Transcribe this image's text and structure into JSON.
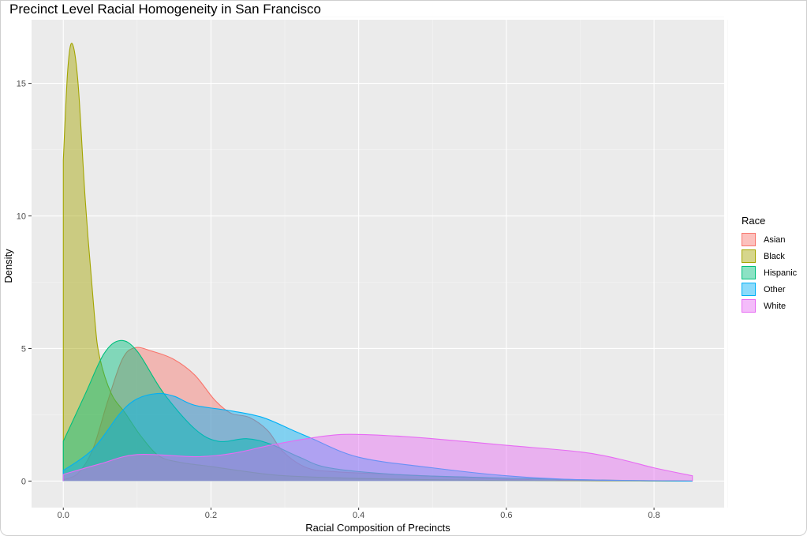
{
  "chart_data": {
    "type": "area",
    "title": "Precinct Level Racial Homogeneity in San Francisco",
    "xlabel": "Racial Composition of Precincts",
    "ylabel": "Density",
    "xlim": [
      -0.043,
      0.895
    ],
    "ylim": [
      -1.0,
      17.4
    ],
    "xticks": [
      0.0,
      0.2,
      0.4,
      0.6,
      0.8
    ],
    "xtick_labels": [
      "0.0",
      "0.2",
      "0.4",
      "0.6",
      "0.8"
    ],
    "yticks": [
      0,
      5,
      10,
      15
    ],
    "ytick_labels": [
      "0",
      "5",
      "10",
      "15"
    ],
    "grid": true,
    "legend": {
      "title": "Race",
      "placement": "right"
    },
    "series": [
      {
        "name": "Asian",
        "color": "#F8766D",
        "x": [
          0,
          0.02,
          0.04,
          0.06,
          0.08,
          0.097,
          0.12,
          0.149,
          0.178,
          0.205,
          0.227,
          0.252,
          0.277,
          0.298,
          0.33,
          0.37,
          0.45,
          0.55,
          0.62,
          0.65,
          0.68,
          0.75,
          0.852
        ],
        "y": [
          0.05,
          0.3,
          1.2,
          3.0,
          4.6,
          5.03,
          4.9,
          4.6,
          4.0,
          3.06,
          2.56,
          2.4,
          1.9,
          1.1,
          0.5,
          0.35,
          0.25,
          0.12,
          0.05,
          0.1,
          0.03,
          0.02,
          0.0
        ]
      },
      {
        "name": "Black",
        "color": "#A3A500",
        "x": [
          0,
          0.006,
          0.012,
          0.02,
          0.03,
          0.042,
          0.049,
          0.065,
          0.084,
          0.105,
          0.13,
          0.16,
          0.2,
          0.25,
          0.3,
          0.4,
          0.5,
          0.6,
          0.7,
          0.852
        ],
        "y": [
          12.1,
          15.5,
          16.5,
          15.0,
          10.5,
          6.3,
          4.7,
          3.3,
          2.56,
          1.7,
          0.94,
          0.7,
          0.55,
          0.35,
          0.2,
          0.1,
          0.05,
          0.02,
          0.01,
          0.0
        ]
      },
      {
        "name": "Hispanic",
        "color": "#00BF7D",
        "x": [
          0,
          0.03,
          0.055,
          0.077,
          0.1,
          0.135,
          0.178,
          0.21,
          0.248,
          0.28,
          0.32,
          0.36,
          0.45,
          0.55,
          0.7,
          0.852
        ],
        "y": [
          1.5,
          3.3,
          4.8,
          5.3,
          4.9,
          3.35,
          1.97,
          1.5,
          1.6,
          1.4,
          0.9,
          0.5,
          0.25,
          0.15,
          0.05,
          0.0
        ]
      },
      {
        "name": "Other",
        "color": "#00B0F6",
        "x": [
          0,
          0.04,
          0.077,
          0.1,
          0.127,
          0.15,
          0.178,
          0.227,
          0.27,
          0.312,
          0.334,
          0.4,
          0.5,
          0.6,
          0.7,
          0.852
        ],
        "y": [
          0.4,
          1.2,
          2.56,
          3.1,
          3.3,
          3.2,
          2.86,
          2.65,
          2.4,
          1.9,
          1.64,
          0.9,
          0.5,
          0.2,
          0.05,
          0.0
        ]
      },
      {
        "name": "White",
        "color": "#E76BF3",
        "x": [
          0,
          0.05,
          0.1,
          0.18,
          0.23,
          0.28,
          0.33,
          0.38,
          0.45,
          0.5,
          0.6,
          0.7,
          0.75,
          0.8,
          0.852
        ],
        "y": [
          0.25,
          0.65,
          1.0,
          0.92,
          1.05,
          1.35,
          1.6,
          1.76,
          1.7,
          1.6,
          1.35,
          1.1,
          0.85,
          0.5,
          0.2
        ]
      }
    ]
  }
}
